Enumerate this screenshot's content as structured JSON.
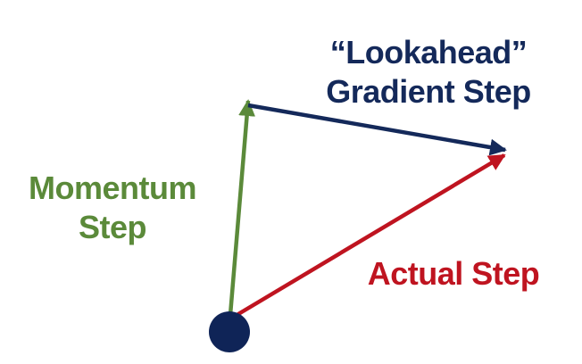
{
  "labels": {
    "lookahead_line1": "“Lookahead”",
    "lookahead_line2": "Gradient Step",
    "momentum_line1": "Momentum",
    "momentum_line2": "Step",
    "actual": "Actual Step"
  },
  "colors": {
    "momentum": "#5b8a3a",
    "lookahead": "#14295a",
    "actual": "#bf1420",
    "start_point": "#0f2457"
  }
}
